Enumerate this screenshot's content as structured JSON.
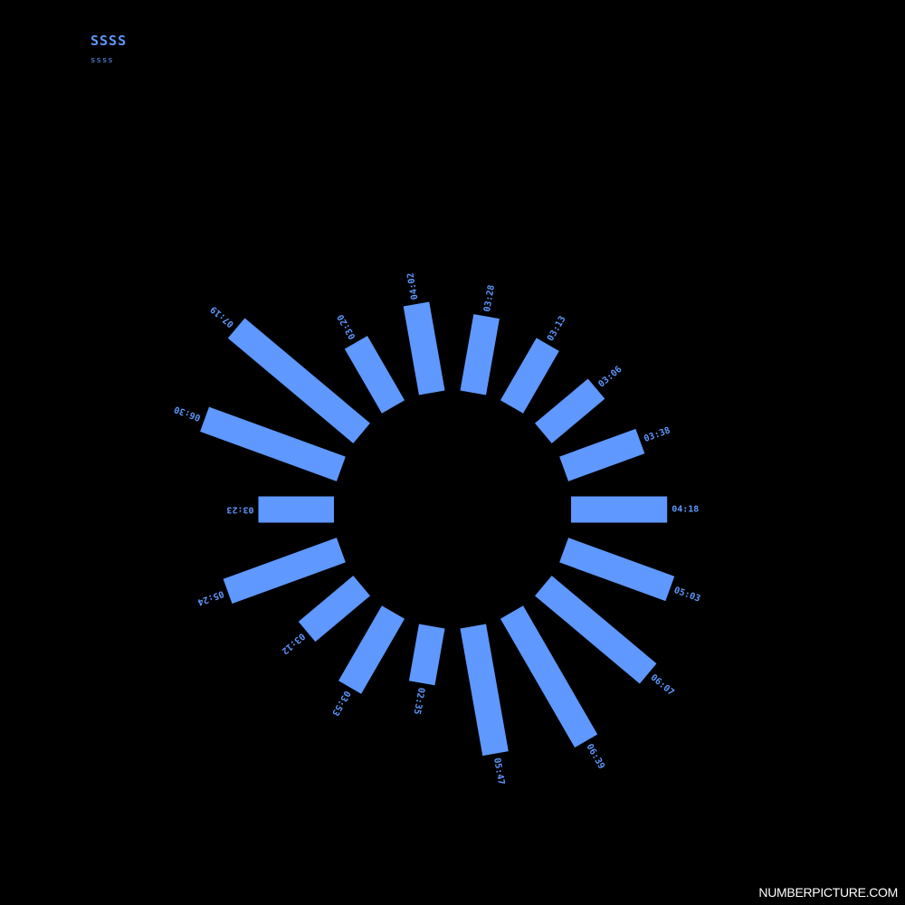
{
  "title": "SSSS",
  "subtitle": "ssss",
  "watermark": "NUMBERPICTURE.COM",
  "colors": {
    "background": "#000000",
    "bar": "#5f98ff",
    "label": "#5f98ff",
    "watermark": "#ffffff"
  },
  "chart_data": {
    "type": "bar",
    "layout": "radial",
    "categories": [
      "04:18",
      "05:03",
      "06:07",
      "06:39",
      "05:47",
      "02:35",
      "03:53",
      "03:12",
      "05:24",
      "03:23",
      "06:30",
      "07:19",
      "03:20",
      "04:02",
      "03:28",
      "03:13",
      "03:06",
      "03:38"
    ],
    "values": [
      4.3,
      5.05,
      6.12,
      6.65,
      5.78,
      2.58,
      3.88,
      3.2,
      5.4,
      3.38,
      6.5,
      7.32,
      3.33,
      4.03,
      3.47,
      3.22,
      3.1,
      3.63
    ],
    "title": "SSSS",
    "subtitle": "ssss"
  }
}
